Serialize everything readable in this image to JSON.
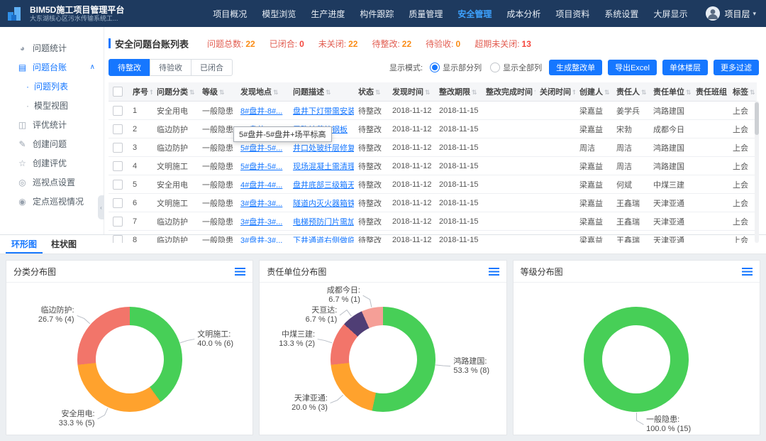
{
  "topbar": {
    "title": "BIM5D施工项目管理平台",
    "subtitle": "大东湖核心区污水传输系统工...",
    "nav_items": [
      {
        "key": "overview",
        "label": "项目概况",
        "active": false
      },
      {
        "key": "model",
        "label": "模型浏览",
        "active": false
      },
      {
        "key": "production",
        "label": "生产进度",
        "active": false
      },
      {
        "key": "components",
        "label": "构件跟踪",
        "active": false
      },
      {
        "key": "quality",
        "label": "质量管理",
        "active": false
      },
      {
        "key": "safety",
        "label": "安全管理",
        "active": true
      },
      {
        "key": "cost",
        "label": "成本分析",
        "active": false
      },
      {
        "key": "documents",
        "label": "项目资料",
        "active": false
      },
      {
        "key": "settings",
        "label": "系统设置",
        "active": false
      },
      {
        "key": "bigscreen",
        "label": "大屏显示",
        "active": false
      }
    ],
    "user": "项目层"
  },
  "sidebar": {
    "items": [
      {
        "key": "issue-stats",
        "label": "问题统计",
        "icon": "pie-chart-icon",
        "active": false,
        "sub": false,
        "caret": false
      },
      {
        "key": "issue-ledger",
        "label": "问题台账",
        "icon": "ledger-icon",
        "active": true,
        "sub": false,
        "caret": true
      },
      {
        "key": "issue-list",
        "label": "问题列表",
        "icon": "bullet-icon",
        "active": true,
        "sub": true,
        "caret": false
      },
      {
        "key": "model-view",
        "label": "模型视图",
        "icon": "bullet-icon",
        "active": false,
        "sub": true,
        "caret": false
      },
      {
        "key": "evaluation-stats",
        "label": "评优统计",
        "icon": "bar-chart-icon",
        "active": false,
        "sub": false,
        "caret": false
      },
      {
        "key": "create-issue",
        "label": "创建问题",
        "icon": "edit-icon",
        "active": false,
        "sub": false,
        "caret": false
      },
      {
        "key": "create-evaluation",
        "label": "创建评优",
        "icon": "star-icon",
        "active": false,
        "sub": false,
        "caret": false
      },
      {
        "key": "patrol-point-settings",
        "label": "巡视点设置",
        "icon": "target-icon",
        "active": false,
        "sub": false,
        "caret": false
      },
      {
        "key": "fixed-patrol-status",
        "label": "定点巡视情况",
        "icon": "location-icon",
        "active": false,
        "sub": false,
        "caret": false
      }
    ]
  },
  "toolbar": {
    "title": "安全问题台账列表",
    "stats": [
      {
        "label": "问题总数",
        "value": "22",
        "label_color": "#e25d51",
        "value_color": "#fa8c16"
      },
      {
        "label": "已闭合",
        "value": "0",
        "label_color": "#e25d51",
        "value_color": "#f5463d"
      },
      {
        "label": "未关闭",
        "value": "22",
        "label_color": "#e25d51",
        "value_color": "#fa8c16"
      },
      {
        "label": "待整改",
        "value": "22",
        "label_color": "#e25d51",
        "value_color": "#fa8c16"
      },
      {
        "label": "待验收",
        "value": "0",
        "label_color": "#e25d51",
        "value_color": "#fa8c16"
      },
      {
        "label": "超期未关闭",
        "value": "13",
        "label_color": "#e25d51",
        "value_color": "#f5463d"
      }
    ],
    "filter_tabs": [
      {
        "key": "pending-rectify",
        "label": "待整改",
        "active": true
      },
      {
        "key": "pending-accept",
        "label": "待验收",
        "active": false
      },
      {
        "key": "closed",
        "label": "已闭合",
        "active": false
      }
    ],
    "display_mode_label": "显示模式:",
    "display_options": [
      {
        "key": "partial-columns",
        "label": "显示部分列",
        "selected": true
      },
      {
        "key": "all-columns",
        "label": "显示全部列",
        "selected": false
      }
    ],
    "action_buttons": [
      {
        "key": "generate-rectification",
        "label": "生成整改单"
      },
      {
        "key": "export-excel",
        "label": "导出Excel"
      },
      {
        "key": "building-floor",
        "label": "单体楼层"
      },
      {
        "key": "more-filters",
        "label": "更多过滤"
      }
    ]
  },
  "table": {
    "columns": [
      "序号",
      "问题分类",
      "等级",
      "发现地点",
      "问题描述",
      "状态",
      "发现时间",
      "整改期限",
      "整改完成时间",
      "关闭时间",
      "创建人",
      "责任人",
      "责任单位",
      "责任班组",
      "标签"
    ],
    "rows": [
      [
        "1",
        "安全用电",
        "一般隐患",
        "8#盘井-8#...",
        "盘井下灯带需安装...",
        "待整改",
        "2018-11-12",
        "2018-11-15",
        "",
        "",
        "梁嘉益",
        "姜学兵",
        "鸿路建国",
        "",
        "上会"
      ],
      [
        "2",
        "临边防护",
        "一般隐患",
        "6#盘井-6#...",
        "需确认花纹钢板",
        "待整改",
        "2018-11-12",
        "2018-11-15",
        "",
        "",
        "梁嘉益",
        "宋勃",
        "成都今日",
        "",
        "上会"
      ],
      [
        "3",
        "临边防护",
        "一般隐患",
        "5#盘井-5#...",
        "井口处玻纤层修复",
        "待整改",
        "2018-11-12",
        "2018-11-15",
        "",
        "",
        "周洁",
        "周洁",
        "鸿路建国",
        "",
        "上会"
      ],
      [
        "4",
        "文明施工",
        "一般隐患",
        "5#盘井-5#...",
        "现场混凝土需清理...",
        "待整改",
        "2018-11-12",
        "2018-11-15",
        "",
        "",
        "梁嘉益",
        "周洁",
        "鸿路建国",
        "",
        "上会"
      ],
      [
        "5",
        "安全用电",
        "一般隐患",
        "4#盘井-4#...",
        "盘井底部三级箱无...",
        "待整改",
        "2018-11-12",
        "2018-11-15",
        "",
        "",
        "梁嘉益",
        "何斌",
        "中煤三建",
        "",
        "上会"
      ],
      [
        "6",
        "文明施工",
        "一般隐患",
        "3#盘井-3#...",
        "隧道内灭火器箱铁...",
        "待整改",
        "2018-11-12",
        "2018-11-15",
        "",
        "",
        "梁嘉益",
        "王鑫瑞",
        "天津亚通",
        "",
        "上会"
      ],
      [
        "7",
        "临边防护",
        "一般隐患",
        "3#盘井-3#...",
        "电梯预防门片需加...",
        "待整改",
        "2018-11-12",
        "2018-11-15",
        "",
        "",
        "梁嘉益",
        "王鑫瑞",
        "天津亚通",
        "",
        "上会"
      ],
      [
        "8",
        "临边防护",
        "一般隐患",
        "3#盘井-3#...",
        "下井通道右侧做临...",
        "待整改",
        "2018-11-12",
        "2018-11-15",
        "",
        "",
        "梁嘉益",
        "王鑫瑞",
        "天津亚通",
        "",
        "上会"
      ]
    ],
    "tooltip": "5#盘井-5#盘井+场平标高"
  },
  "charts_section": {
    "tabs": [
      {
        "key": "donut",
        "label": "环形图",
        "active": true
      },
      {
        "key": "bar",
        "label": "柱状图",
        "active": false
      }
    ]
  },
  "chart_data": [
    {
      "type": "pie",
      "title": "分类分布图",
      "donut": true,
      "legend_position": "outside",
      "slices": [
        {
          "name": "文明施工",
          "value": 6,
          "pct": "40.0",
          "color": "#47cf57"
        },
        {
          "name": "安全用电",
          "value": 5,
          "pct": "33.3",
          "color": "#ffa22d"
        },
        {
          "name": "临边防护",
          "value": 4,
          "pct": "26.7",
          "color": "#f2756a"
        }
      ]
    },
    {
      "type": "pie",
      "title": "责任单位分布图",
      "donut": true,
      "legend_position": "outside",
      "slices": [
        {
          "name": "鸿路建国",
          "value": 8,
          "pct": "53.3",
          "color": "#47cf57"
        },
        {
          "name": "天津亚通",
          "value": 3,
          "pct": "20.0",
          "color": "#ffa22d"
        },
        {
          "name": "中煤三建",
          "value": 2,
          "pct": "13.3",
          "color": "#f2756a"
        },
        {
          "name": "天亘达",
          "value": 1,
          "pct": "6.7",
          "color": "#4f3e75"
        },
        {
          "name": "成都今日",
          "value": 1,
          "pct": "6.7",
          "color": "#f59f97"
        }
      ]
    },
    {
      "type": "pie",
      "title": "等级分布图",
      "donut": true,
      "legend_position": "outside",
      "slices": [
        {
          "name": "一般隐患",
          "value": 15,
          "pct": "100.0",
          "color": "#47cf57"
        }
      ]
    }
  ]
}
